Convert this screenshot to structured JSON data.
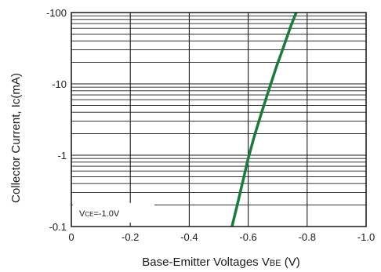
{
  "chart_data": {
    "type": "line",
    "x_axis": {
      "label_main": "Base-Emitter Voltages  V",
      "label_sub": "BE",
      "label_unit": "  (V)",
      "range": [
        0,
        -1.0
      ],
      "ticks": [
        0,
        -0.2,
        -0.4,
        -0.6,
        -0.8,
        -1.0
      ],
      "tick_labels": [
        "0",
        "-0.2",
        "-0.4",
        "-0.6",
        "-0.8",
        "-1.0"
      ]
    },
    "y_axis": {
      "label": "Collector Current, Ic(mA)",
      "scale": "log",
      "range": [
        -0.1,
        -100
      ],
      "ticks": [
        -0.1,
        -1,
        -10,
        -100
      ],
      "tick_labels": [
        "-0.1",
        "-1",
        "-10",
        "-100"
      ]
    },
    "grid": true,
    "annotation": {
      "prefix": "V",
      "sub": "CE",
      "value": "=-1.0V"
    },
    "series": [
      {
        "color": "#1e7a3c",
        "x": [
          -0.545,
          -0.56,
          -0.58,
          -0.6,
          -0.62,
          -0.645,
          -0.67,
          -0.695,
          -0.72,
          -0.745,
          -0.765
        ],
        "y": [
          -0.1,
          -0.18,
          -0.4,
          -0.9,
          -1.8,
          -3.9,
          -8.2,
          -17,
          -33,
          -65,
          -105
        ]
      }
    ]
  }
}
